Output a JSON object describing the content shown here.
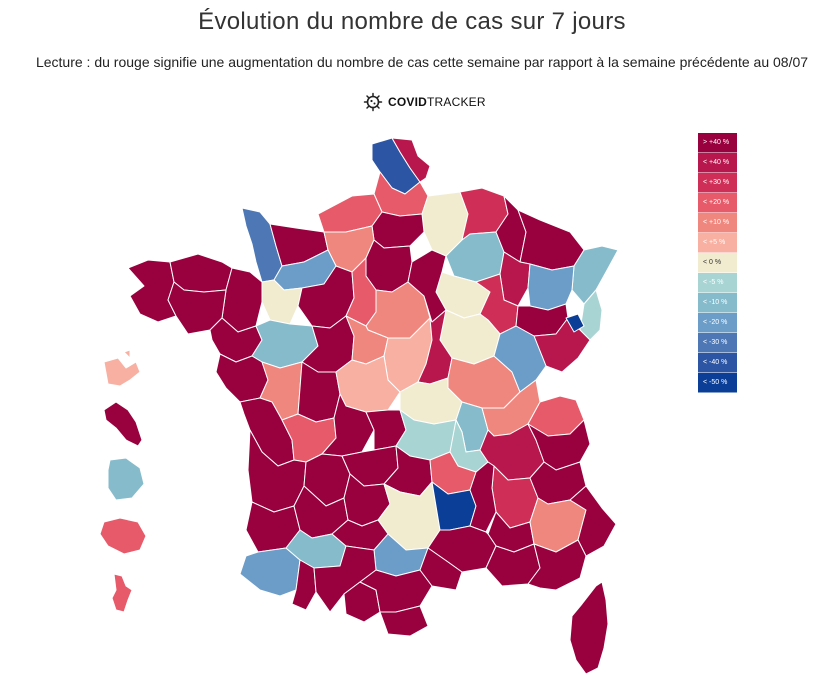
{
  "title": "Évolution du nombre de cas sur 7 jours",
  "subtitle": "Lecture : du rouge signifie une augmentation du nombre de cas cette semaine par rapport à la semaine précédente au 08/07",
  "brand": {
    "bold": "COVID",
    "regular": "TRACKER",
    "icon": "virus-icon"
  },
  "legend": [
    {
      "label": "> +40 %",
      "color": "#99003e",
      "text": "#ffffff"
    },
    {
      "label": "< +40 %",
      "color": "#b8174d",
      "text": "#ffffff"
    },
    {
      "label": "< +30 %",
      "color": "#cf2f57",
      "text": "#ffffff"
    },
    {
      "label": "< +20 %",
      "color": "#e65a6a",
      "text": "#ffffff"
    },
    {
      "label": "< +10 %",
      "color": "#f0877e",
      "text": "#ffffff"
    },
    {
      "label": "< +5 %",
      "color": "#f7b0a2",
      "text": "#ffffff"
    },
    {
      "label": "< 0 %",
      "color": "#f1ecd0",
      "text": "#333333"
    },
    {
      "label": "< -5 %",
      "color": "#a9d4d4",
      "text": "#ffffff"
    },
    {
      "label": "< -10 %",
      "color": "#86bbcc",
      "text": "#ffffff"
    },
    {
      "label": "< -20 %",
      "color": "#6b9dc8",
      "text": "#ffffff"
    },
    {
      "label": "< -30 %",
      "color": "#4d77b5",
      "text": "#ffffff"
    },
    {
      "label": "< -40 %",
      "color": "#2c55a3",
      "text": "#ffffff"
    },
    {
      "label": "< -50 %",
      "color": "#0b3e96",
      "text": "#ffffff"
    }
  ],
  "regions": [
    {
      "id": "nord",
      "cls": 11
    },
    {
      "id": "pas-de-calais",
      "cls": 1
    },
    {
      "id": "somme",
      "cls": 3
    },
    {
      "id": "aisne",
      "cls": 6
    },
    {
      "id": "ardennes",
      "cls": 2
    },
    {
      "id": "marne",
      "cls": 8
    },
    {
      "id": "seine-maritime",
      "cls": 3
    },
    {
      "id": "oise",
      "cls": 0
    },
    {
      "id": "manche",
      "cls": 10
    },
    {
      "id": "calvados",
      "cls": 0
    },
    {
      "id": "eure",
      "cls": 4
    },
    {
      "id": "ile-de-france",
      "cls": 0
    },
    {
      "id": "meuse",
      "cls": 0
    },
    {
      "id": "moselle",
      "cls": 0
    },
    {
      "id": "bas-rhin",
      "cls": 8
    },
    {
      "id": "haut-rhin",
      "cls": 7
    },
    {
      "id": "meurthe-et-moselle",
      "cls": 1
    },
    {
      "id": "vosges",
      "cls": 9
    },
    {
      "id": "aube",
      "cls": 6
    },
    {
      "id": "haute-marne",
      "cls": 2
    },
    {
      "id": "finistere",
      "cls": 0
    },
    {
      "id": "cotes-darmor",
      "cls": 0
    },
    {
      "id": "ille-et-vilaine",
      "cls": 0
    },
    {
      "id": "morbihan",
      "cls": 0
    },
    {
      "id": "orne",
      "cls": 9
    },
    {
      "id": "mayenne",
      "cls": 6
    },
    {
      "id": "sarthe",
      "cls": 0
    },
    {
      "id": "eure-et-loir",
      "cls": 3
    },
    {
      "id": "loiret",
      "cls": 4
    },
    {
      "id": "yonne",
      "cls": 0
    },
    {
      "id": "cote-dor",
      "cls": 6
    },
    {
      "id": "haute-saone",
      "cls": 0
    },
    {
      "id": "doubs",
      "cls": 1
    },
    {
      "id": "territoire-de-belfort",
      "cls": 12
    },
    {
      "id": "loire-atlantique",
      "cls": 0
    },
    {
      "id": "maine-et-loire",
      "cls": 8
    },
    {
      "id": "indre-et-loire",
      "cls": 0
    },
    {
      "id": "loir-et-cher",
      "cls": 4
    },
    {
      "id": "cher",
      "cls": 5
    },
    {
      "id": "nievre",
      "cls": 1
    },
    {
      "id": "saone-et-loire",
      "cls": 4
    },
    {
      "id": "jura",
      "cls": 9
    },
    {
      "id": "vendee",
      "cls": 0
    },
    {
      "id": "deux-sevres",
      "cls": 4
    },
    {
      "id": "vienne",
      "cls": 0
    },
    {
      "id": "indre",
      "cls": 5
    },
    {
      "id": "allier",
      "cls": 6
    },
    {
      "id": "rhone",
      "cls": 8
    },
    {
      "id": "ain",
      "cls": 4
    },
    {
      "id": "haute-savoie",
      "cls": 3
    },
    {
      "id": "charente-maritime",
      "cls": 0
    },
    {
      "id": "charente",
      "cls": 3
    },
    {
      "id": "haute-vienne",
      "cls": 0
    },
    {
      "id": "creuse",
      "cls": 0
    },
    {
      "id": "puy-de-dome",
      "cls": 7
    },
    {
      "id": "loire",
      "cls": 7
    },
    {
      "id": "isere",
      "cls": 1
    },
    {
      "id": "savoie",
      "cls": 0
    },
    {
      "id": "gironde",
      "cls": 0
    },
    {
      "id": "dordogne",
      "cls": 0
    },
    {
      "id": "correze",
      "cls": 0
    },
    {
      "id": "cantal",
      "cls": 0
    },
    {
      "id": "haute-loire",
      "cls": 3
    },
    {
      "id": "drome",
      "cls": 2
    },
    {
      "id": "hautes-alpes",
      "cls": 0
    },
    {
      "id": "landes",
      "cls": 0
    },
    {
      "id": "lot-et-garonne",
      "cls": 0
    },
    {
      "id": "lot",
      "cls": 0
    },
    {
      "id": "aveyron",
      "cls": 6
    },
    {
      "id": "lozere",
      "cls": 12
    },
    {
      "id": "ardeche",
      "cls": 0
    },
    {
      "id": "vaucluse",
      "cls": 0
    },
    {
      "id": "alpes-de-haute-provence",
      "cls": 4
    },
    {
      "id": "alpes-maritimes",
      "cls": 0
    },
    {
      "id": "pyrenees-atlantiques",
      "cls": 9
    },
    {
      "id": "gers",
      "cls": 8
    },
    {
      "id": "tarn-et-garonne",
      "cls": 0
    },
    {
      "id": "tarn",
      "cls": 9
    },
    {
      "id": "gard",
      "cls": 0
    },
    {
      "id": "bouches-du-rhone",
      "cls": 0
    },
    {
      "id": "var",
      "cls": 0
    },
    {
      "id": "hautes-pyrenees",
      "cls": 0
    },
    {
      "id": "haute-garonne",
      "cls": 0
    },
    {
      "id": "ariege",
      "cls": 0
    },
    {
      "id": "aude",
      "cls": 0
    },
    {
      "id": "herault",
      "cls": 0
    },
    {
      "id": "pyrenees-orientales",
      "cls": 0
    },
    {
      "id": "corse",
      "cls": 0
    },
    {
      "id": "guadeloupe",
      "cls": 5
    },
    {
      "id": "martinique",
      "cls": 0
    },
    {
      "id": "guyane",
      "cls": 8
    },
    {
      "id": "reunion",
      "cls": 3
    },
    {
      "id": "mayotte",
      "cls": 3
    }
  ]
}
